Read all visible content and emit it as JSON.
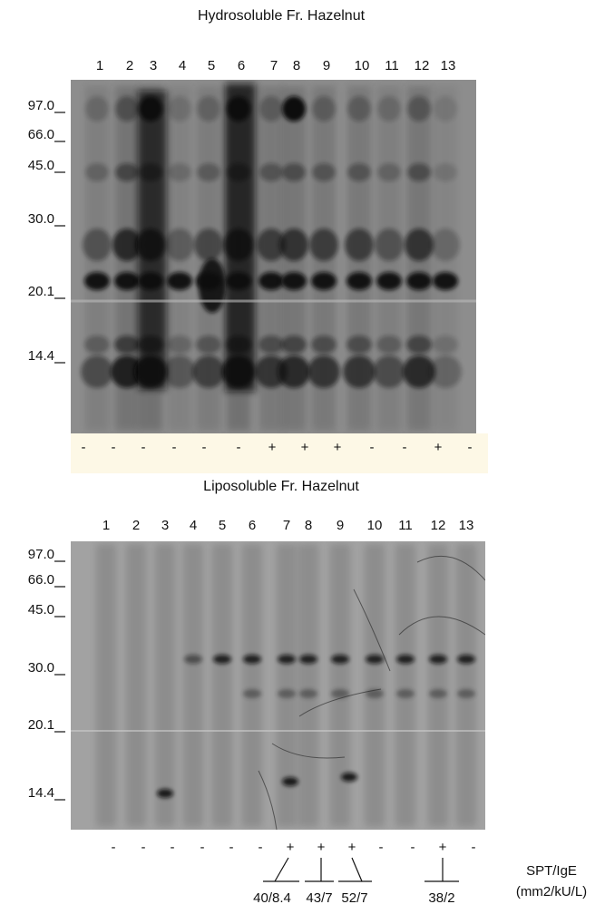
{
  "panels": [
    {
      "title": "Hydrosoluble Fr. Hazelnut",
      "lanes": [
        "1",
        "2",
        "3",
        "4",
        "5",
        "6",
        "7",
        "8",
        "9",
        "10",
        "11",
        "12",
        "13"
      ],
      "mw": [
        "97.0",
        "66.0",
        "45.0",
        "30.0",
        "20.1",
        "14.4"
      ],
      "signs": [
        "-",
        "-",
        "-",
        "-",
        "-",
        "-",
        "+",
        "+",
        "+",
        "-",
        "-",
        "+",
        "-"
      ]
    },
    {
      "title": "Liposoluble Fr. Hazelnut",
      "lanes": [
        "1",
        "2",
        "3",
        "4",
        "5",
        "6",
        "7",
        "8",
        "9",
        "10",
        "11",
        "12",
        "13"
      ],
      "mw": [
        "97.0",
        "66.0",
        "45.0",
        "30.0",
        "20.1",
        "14.4"
      ],
      "signs": [
        "-",
        "-",
        "-",
        "-",
        "-",
        "-",
        "+",
        "+",
        "+",
        "-",
        "-",
        "+",
        "-"
      ]
    }
  ],
  "spt": {
    "label": "SPT/IgE",
    "unit": "(mm2/kU/L)",
    "values": [
      "40/8.4",
      "43/7",
      "52/7",
      "38/2"
    ]
  }
}
